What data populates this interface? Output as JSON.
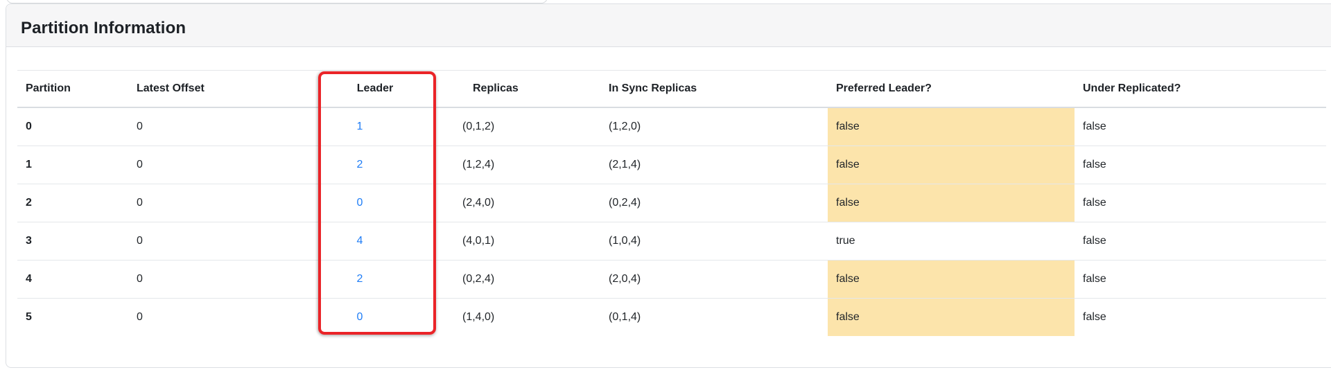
{
  "card": {
    "title": "Partition Information"
  },
  "table": {
    "columns": [
      {
        "key": "partition",
        "label": "Partition"
      },
      {
        "key": "latestOffset",
        "label": "Latest Offset"
      },
      {
        "key": "leader",
        "label": "Leader"
      },
      {
        "key": "replicas",
        "label": "Replicas"
      },
      {
        "key": "inSyncReplicas",
        "label": "In Sync Replicas"
      },
      {
        "key": "preferredLeader",
        "label": "Preferred Leader?"
      },
      {
        "key": "underReplicated",
        "label": "Under Replicated?"
      }
    ],
    "rows": [
      {
        "partition": "0",
        "latestOffset": "0",
        "leader": "1",
        "replicas": "(0,1,2)",
        "inSyncReplicas": "(1,2,0)",
        "preferredLeader": "false",
        "underReplicated": "false",
        "preferredLeaderHighlighted": true
      },
      {
        "partition": "1",
        "latestOffset": "0",
        "leader": "2",
        "replicas": "(1,2,4)",
        "inSyncReplicas": "(2,1,4)",
        "preferredLeader": "false",
        "underReplicated": "false",
        "preferredLeaderHighlighted": true
      },
      {
        "partition": "2",
        "latestOffset": "0",
        "leader": "0",
        "replicas": "(2,4,0)",
        "inSyncReplicas": "(0,2,4)",
        "preferredLeader": "false",
        "underReplicated": "false",
        "preferredLeaderHighlighted": true
      },
      {
        "partition": "3",
        "latestOffset": "0",
        "leader": "4",
        "replicas": "(4,0,1)",
        "inSyncReplicas": "(1,0,4)",
        "preferredLeader": "true",
        "underReplicated": "false",
        "preferredLeaderHighlighted": false
      },
      {
        "partition": "4",
        "latestOffset": "0",
        "leader": "2",
        "replicas": "(0,2,4)",
        "inSyncReplicas": "(2,0,4)",
        "preferredLeader": "false",
        "underReplicated": "false",
        "preferredLeaderHighlighted": true
      },
      {
        "partition": "5",
        "latestOffset": "0",
        "leader": "0",
        "replicas": "(1,4,0)",
        "inSyncReplicas": "(0,1,4)",
        "preferredLeader": "false",
        "underReplicated": "false",
        "preferredLeaderHighlighted": true
      }
    ]
  },
  "annotation": {
    "shape": "red-rectangle",
    "target": "leader-column"
  },
  "colors": {
    "leader_link": "#1f7df6",
    "warning_highlight": "#fce4ab",
    "annotation_red": "#ea2428",
    "card_header_bg": "#f6f6f7"
  }
}
